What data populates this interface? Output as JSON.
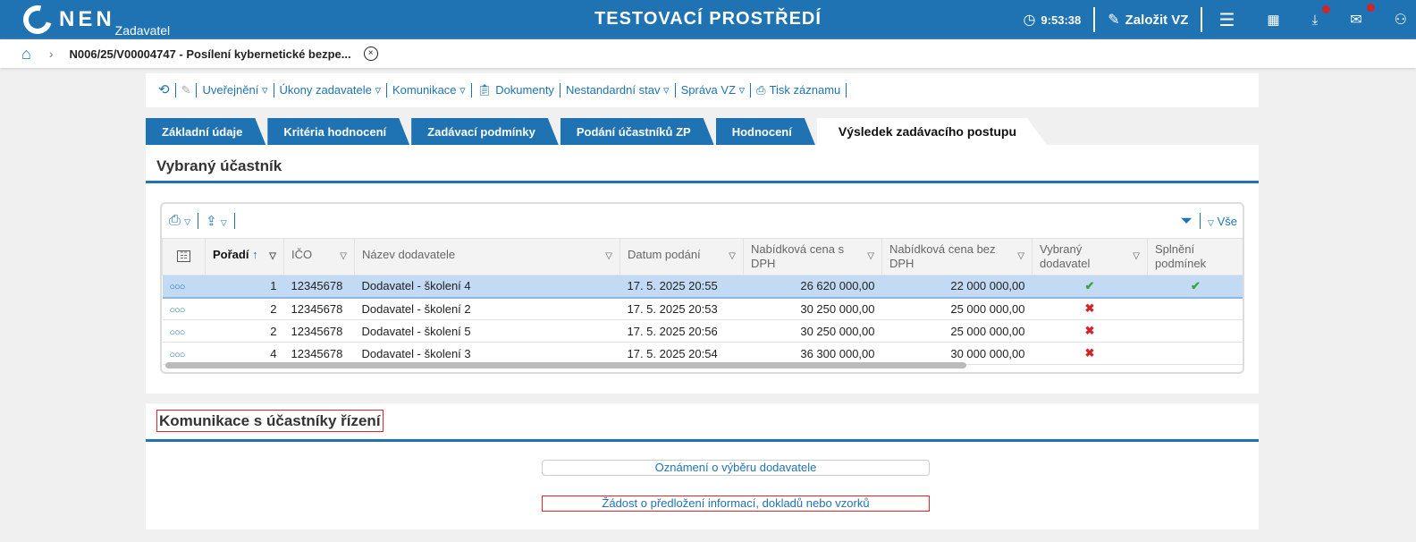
{
  "header": {
    "logo": "NEN",
    "logo_sub": "Zadavatel",
    "env": "TESTOVACÍ PROSTŘEDÍ",
    "time": "9:53:38",
    "create": "Založit VZ",
    "accent": "#1f73b2",
    "badge_color": "#d0262a"
  },
  "breadcrumb": {
    "title": "N006/25/V00004747 - Posílení kybernetické bezpe..."
  },
  "toolbar": {
    "items": [
      "Uveřejnění ▿",
      "Úkony zadavatele ▿",
      "Komunikace ▿",
      "Dokumenty",
      "Nestandardní stav ▿",
      "Správa VZ ▿",
      "Tisk záznamu"
    ]
  },
  "tabs": [
    "Základní údaje",
    "Kritéria hodnocení",
    "Zadávací podmínky",
    "Podání účastníků ZP",
    "Hodnocení",
    "Výsledek zadávacího postupu"
  ],
  "selected": {
    "title": "Vybraný účastník",
    "filter_all": "Vše",
    "columns": [
      "Pořadí",
      "IČO",
      "Název dodavatele",
      "Datum podání",
      "Nabídková cena s DPH",
      "Nabídková cena bez DPH",
      "Vybraný dodavatel",
      "Splnění podmínek"
    ],
    "rows": [
      {
        "rank": "1",
        "ico": "12345678",
        "name": "Dodavatel - školení 4",
        "date": "17. 5. 2025 20:55",
        "with_vat": "26 620 000,00",
        "without_vat": "22 000 000,00",
        "selected": "✔",
        "fulfilled": "✔"
      },
      {
        "rank": "2",
        "ico": "12345678",
        "name": "Dodavatel - školení 2",
        "date": "17. 5. 2025 20:53",
        "with_vat": "30 250 000,00",
        "without_vat": "25 000 000,00",
        "selected": "✖",
        "fulfilled": ""
      },
      {
        "rank": "2",
        "ico": "12345678",
        "name": "Dodavatel - školení 5",
        "date": "17. 5. 2025 20:56",
        "with_vat": "30 250 000,00",
        "without_vat": "25 000 000,00",
        "selected": "✖",
        "fulfilled": ""
      },
      {
        "rank": "4",
        "ico": "12345678",
        "name": "Dodavatel - školení 3",
        "date": "17. 5. 2025 20:54",
        "with_vat": "36 300 000,00",
        "without_vat": "30 000 000,00",
        "selected": "✖",
        "fulfilled": ""
      }
    ]
  },
  "communication": {
    "title": "Komunikace s účastníky řízení",
    "buttons": [
      "Oznámení o výběru dodavatele",
      "Žádost o předložení informací, dokladů nebo vzorků"
    ]
  }
}
